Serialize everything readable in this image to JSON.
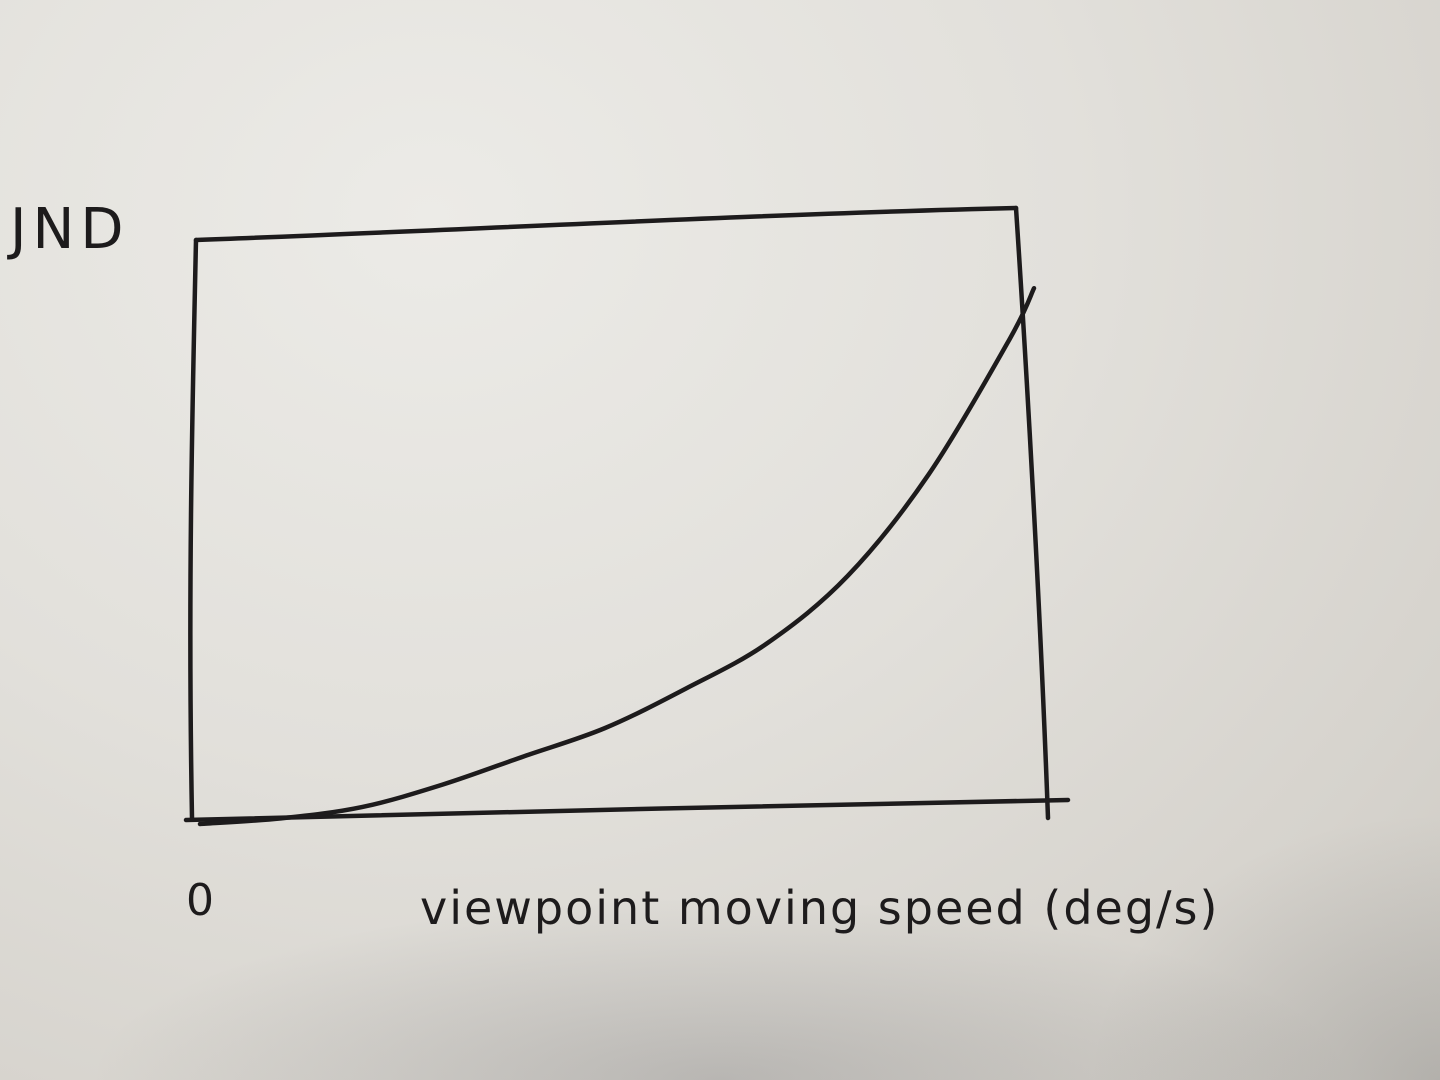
{
  "chart_data": {
    "type": "line",
    "ylabel": "JND",
    "xlabel": "viewpoint moving speed (deg/s)",
    "x_tick_labels": [
      "0"
    ],
    "grid": false,
    "legend": "none",
    "x": [
      0,
      0.1,
      0.2,
      0.3,
      0.4,
      0.5,
      0.6,
      0.7,
      0.8,
      0.9,
      1.0,
      1.03
    ],
    "series": [
      {
        "values": [
          0.0,
          0.01,
          0.03,
          0.07,
          0.12,
          0.17,
          0.24,
          0.32,
          0.44,
          0.62,
          0.86,
          0.95
        ]
      }
    ],
    "xlim": [
      0,
      1.03
    ],
    "ylim": [
      0,
      1.0
    ]
  }
}
